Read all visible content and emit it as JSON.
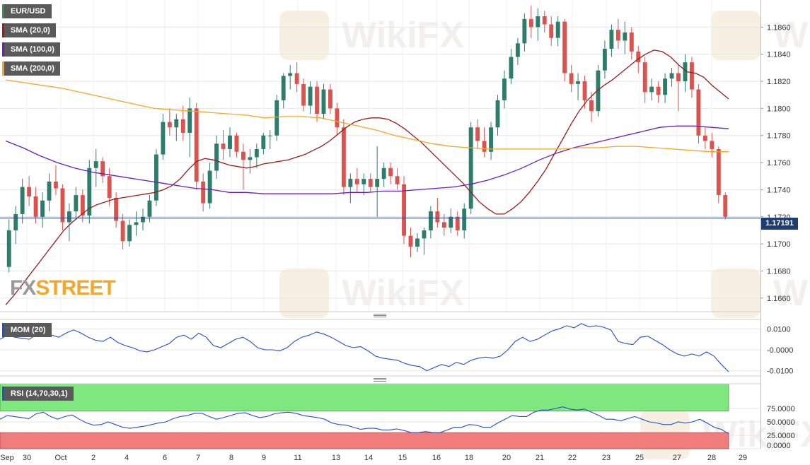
{
  "instrument": "EUR/USD",
  "current_price": "1.17191",
  "logo": {
    "part1": "FX",
    "part2": "STREET"
  },
  "watermark": "WikiFX",
  "legends": {
    "sma20": "SMA (20,0)",
    "sma100": "SMA (100,0)",
    "sma200": "SMA (200,0)",
    "mom": "MOM (20)",
    "rsi": "RSI (14,70,30,1)"
  },
  "colors": {
    "up": "#2e7d6b",
    "down": "#d9534f",
    "sma20": "#9b1c1c",
    "sma100": "#6a1fc0",
    "sma200": "#f5a623",
    "mom": "#2450c8",
    "rsi": "#2450c8",
    "rsi_overbought_band": "#7ee87e",
    "rsi_oversold_band": "#f07c7c",
    "price_line": "#1f3d73",
    "grid": "#e6e6e6"
  },
  "chart_data": [
    {
      "type": "candlestick",
      "panel": "price",
      "title": "EUR/USD",
      "ylim": [
        1.165,
        1.188
      ],
      "y_ticks": [
        "1.1860",
        "1.1840",
        "1.1820",
        "1.1800",
        "1.1780",
        "1.1760",
        "1.1740",
        "1.1720",
        "1.1700",
        "1.1680",
        "1.1660"
      ],
      "x_labels": [
        "Sep",
        "30",
        "Oct",
        "2",
        "4",
        "6",
        "7",
        "8",
        "9",
        "11",
        "13",
        "14",
        "15",
        "16",
        "18",
        "20",
        "21",
        "22",
        "23",
        "25",
        "27",
        "28",
        "29"
      ],
      "grid": true,
      "candles": [
        [
          1.1683,
          1.1718,
          1.1679,
          1.171
        ],
        [
          1.171,
          1.1728,
          1.17,
          1.1722
        ],
        [
          1.1722,
          1.1748,
          1.1715,
          1.1742
        ],
        [
          1.1742,
          1.175,
          1.1728,
          1.1735
        ],
        [
          1.1735,
          1.1742,
          1.1715,
          1.172
        ],
        [
          1.172,
          1.1738,
          1.1712,
          1.1732
        ],
        [
          1.1732,
          1.1752,
          1.1724,
          1.1746
        ],
        [
          1.1746,
          1.1758,
          1.1736,
          1.1741
        ],
        [
          1.1741,
          1.1744,
          1.171,
          1.1716
        ],
        [
          1.1716,
          1.173,
          1.1702,
          1.1724
        ],
        [
          1.1724,
          1.1742,
          1.1718,
          1.1736
        ],
        [
          1.1736,
          1.174,
          1.1716,
          1.1721
        ],
        [
          1.1721,
          1.1762,
          1.1715,
          1.1756
        ],
        [
          1.1756,
          1.177,
          1.1742,
          1.1761
        ],
        [
          1.1761,
          1.1764,
          1.1745,
          1.175
        ],
        [
          1.175,
          1.1756,
          1.1728,
          1.1734
        ],
        [
          1.1734,
          1.1738,
          1.1712,
          1.1717
        ],
        [
          1.1717,
          1.1722,
          1.1696,
          1.1702
        ],
        [
          1.1702,
          1.1718,
          1.1698,
          1.1714
        ],
        [
          1.1714,
          1.1724,
          1.1706,
          1.1716
        ],
        [
          1.1716,
          1.1726,
          1.171,
          1.172
        ],
        [
          1.172,
          1.1736,
          1.1716,
          1.1732
        ],
        [
          1.1732,
          1.177,
          1.1728,
          1.1766
        ],
        [
          1.1766,
          1.1796,
          1.1762,
          1.179
        ],
        [
          1.179,
          1.18,
          1.178,
          1.1786
        ],
        [
          1.1786,
          1.1796,
          1.1776,
          1.1792
        ],
        [
          1.1792,
          1.1802,
          1.1776,
          1.1782
        ],
        [
          1.1782,
          1.1808,
          1.1764,
          1.18
        ],
        [
          1.18,
          1.1804,
          1.174,
          1.1746
        ],
        [
          1.1746,
          1.1752,
          1.1724,
          1.173
        ],
        [
          1.173,
          1.176,
          1.1726,
          1.1754
        ],
        [
          1.1754,
          1.178,
          1.1748,
          1.1774
        ],
        [
          1.1774,
          1.1784,
          1.1762,
          1.177
        ],
        [
          1.177,
          1.1786,
          1.1764,
          1.178
        ],
        [
          1.178,
          1.1782,
          1.1764,
          1.1768
        ],
        [
          1.1768,
          1.1774,
          1.174,
          1.1762
        ],
        [
          1.1762,
          1.177,
          1.1752,
          1.1764
        ],
        [
          1.1764,
          1.1774,
          1.1756,
          1.177
        ],
        [
          1.177,
          1.1782,
          1.1766,
          1.178
        ],
        [
          1.178,
          1.1784,
          1.177,
          1.178
        ],
        [
          1.178,
          1.181,
          1.1776,
          1.1806
        ],
        [
          1.1806,
          1.1826,
          1.18,
          1.1824
        ],
        [
          1.1824,
          1.1832,
          1.1814,
          1.1826
        ],
        [
          1.1826,
          1.1834,
          1.1812,
          1.1818
        ],
        [
          1.1818,
          1.1822,
          1.1798,
          1.1802
        ],
        [
          1.1802,
          1.182,
          1.1796,
          1.1816
        ],
        [
          1.1816,
          1.182,
          1.179,
          1.1796
        ],
        [
          1.1796,
          1.1818,
          1.1792,
          1.1814
        ],
        [
          1.1814,
          1.1818,
          1.1796,
          1.18
        ],
        [
          1.18,
          1.1804,
          1.178,
          1.1786
        ],
        [
          1.1786,
          1.1792,
          1.1736,
          1.1742
        ],
        [
          1.1742,
          1.1752,
          1.173,
          1.1748
        ],
        [
          1.1748,
          1.1756,
          1.1738,
          1.1744
        ],
        [
          1.1744,
          1.1752,
          1.1736,
          1.1748
        ],
        [
          1.1748,
          1.1752,
          1.1738,
          1.1742
        ],
        [
          1.1742,
          1.1772,
          1.172,
          1.1748
        ],
        [
          1.1748,
          1.176,
          1.1742,
          1.1756
        ],
        [
          1.1756,
          1.176,
          1.1744,
          1.175
        ],
        [
          1.175,
          1.1756,
          1.174,
          1.1744
        ],
        [
          1.1744,
          1.175,
          1.17,
          1.1706
        ],
        [
          1.1706,
          1.1712,
          1.169,
          1.1698
        ],
        [
          1.1698,
          1.1708,
          1.1694,
          1.1704
        ],
        [
          1.1704,
          1.1712,
          1.1692,
          1.171
        ],
        [
          1.171,
          1.1728,
          1.1704,
          1.1724
        ],
        [
          1.1724,
          1.1734,
          1.1712,
          1.1716
        ],
        [
          1.1716,
          1.1722,
          1.1706,
          1.1712
        ],
        [
          1.1712,
          1.1726,
          1.1708,
          1.172
        ],
        [
          1.172,
          1.1724,
          1.1706,
          1.171
        ],
        [
          1.171,
          1.173,
          1.1704,
          1.1726
        ],
        [
          1.1726,
          1.179,
          1.1722,
          1.1786
        ],
        [
          1.1786,
          1.1792,
          1.177,
          1.1776
        ],
        [
          1.1776,
          1.1786,
          1.1764,
          1.1768
        ],
        [
          1.1768,
          1.179,
          1.1762,
          1.1786
        ],
        [
          1.1786,
          1.181,
          1.178,
          1.1806
        ],
        [
          1.1806,
          1.1828,
          1.18,
          1.1822
        ],
        [
          1.1822,
          1.1844,
          1.1818,
          1.1838
        ],
        [
          1.1838,
          1.1852,
          1.1832,
          1.1848
        ],
        [
          1.1848,
          1.187,
          1.1842,
          1.1866
        ],
        [
          1.1866,
          1.1876,
          1.1852,
          1.186
        ],
        [
          1.186,
          1.1874,
          1.185,
          1.1868
        ],
        [
          1.1868,
          1.1872,
          1.1856,
          1.1862
        ],
        [
          1.1862,
          1.1868,
          1.1846,
          1.1852
        ],
        [
          1.1852,
          1.1868,
          1.1846,
          1.1864
        ],
        [
          1.1864,
          1.1866,
          1.182,
          1.1826
        ],
        [
          1.1826,
          1.1832,
          1.1812,
          1.1818
        ],
        [
          1.1818,
          1.1826,
          1.1806,
          1.182
        ],
        [
          1.182,
          1.1824,
          1.18,
          1.1806
        ],
        [
          1.1806,
          1.1812,
          1.179,
          1.1798
        ],
        [
          1.1798,
          1.1832,
          1.1794,
          1.1828
        ],
        [
          1.1828,
          1.185,
          1.1822,
          1.1844
        ],
        [
          1.1844,
          1.1862,
          1.1838,
          1.1858
        ],
        [
          1.1858,
          1.1866,
          1.1844,
          1.185
        ],
        [
          1.185,
          1.1864,
          1.184,
          1.1856
        ],
        [
          1.1856,
          1.186,
          1.1836,
          1.1842
        ],
        [
          1.1842,
          1.1846,
          1.1826,
          1.1834
        ],
        [
          1.1834,
          1.1838,
          1.1804,
          1.1812
        ],
        [
          1.1812,
          1.1822,
          1.1806,
          1.1816
        ],
        [
          1.1816,
          1.182,
          1.1804,
          1.181
        ],
        [
          1.181,
          1.1826,
          1.1804,
          1.1822
        ],
        [
          1.1822,
          1.183,
          1.1816,
          1.1826
        ],
        [
          1.1826,
          1.1832,
          1.1798,
          1.182
        ],
        [
          1.182,
          1.184,
          1.1812,
          1.1834
        ],
        [
          1.1834,
          1.1838,
          1.1808,
          1.1814
        ],
        [
          1.1814,
          1.1818,
          1.1774,
          1.178
        ],
        [
          1.178,
          1.1786,
          1.177,
          1.1776
        ],
        [
          1.1776,
          1.1782,
          1.1764,
          1.177
        ],
        [
          1.177,
          1.1772,
          1.173,
          1.1736
        ],
        [
          1.1736,
          1.1738,
          1.1718,
          1.172
        ]
      ],
      "series": [
        {
          "name": "SMA (20,0)",
          "values": [
            1.1655,
            1.1662,
            1.167,
            1.1678,
            1.1686,
            1.1694,
            1.1702,
            1.171,
            1.1716,
            1.1721,
            1.1726,
            1.1729,
            1.1731,
            1.1733,
            1.1734,
            1.1735,
            1.1736,
            1.1737,
            1.1738,
            1.174,
            1.1743,
            1.1748,
            1.1755,
            1.1761,
            1.1763,
            1.1762,
            1.176,
            1.1758,
            1.1757,
            1.1756,
            1.1757,
            1.1759,
            1.176,
            1.1761,
            1.1762,
            1.1764,
            1.1766,
            1.1769,
            1.1772,
            1.1776,
            1.1781,
            1.1786,
            1.179,
            1.1792,
            1.1793,
            1.1793,
            1.1792,
            1.1789,
            1.1785,
            1.178,
            1.1775,
            1.1769,
            1.1763,
            1.1757,
            1.1751,
            1.1745,
            1.1738,
            1.1731,
            1.1726,
            1.1722,
            1.1722,
            1.1726,
            1.1731,
            1.1738,
            1.1746,
            1.1755,
            1.1766,
            1.1777,
            1.1788,
            1.1798,
            1.1806,
            1.1812,
            1.1817,
            1.1821,
            1.1826,
            1.1831,
            1.1836,
            1.184,
            1.1843,
            1.1842,
            1.1838,
            1.1832,
            1.1827,
            1.1826,
            1.1823,
            1.1817,
            1.1812,
            1.1807
          ]
        },
        {
          "name": "SMA (100,0)",
          "values": [
            1.1776,
            1.1771,
            1.1765,
            1.176,
            1.1756,
            1.1753,
            1.1751,
            1.1749,
            1.1747,
            1.1745,
            1.1743,
            1.1741,
            1.174,
            1.1738,
            1.1738,
            1.1737,
            1.1737,
            1.1737,
            1.1737,
            1.1737,
            1.1738,
            1.1738,
            1.1739,
            1.1739,
            1.174,
            1.1741,
            1.1742,
            1.1744,
            1.1747,
            1.1751,
            1.1756,
            1.1762,
            1.1767,
            1.1771,
            1.1774,
            1.1777,
            1.178,
            1.1783,
            1.1786,
            1.1787,
            1.1787,
            1.1786,
            1.1785
          ]
        },
        {
          "name": "SMA (200,0)",
          "values": [
            1.1821,
            1.1819,
            1.1817,
            1.1815,
            1.1812,
            1.1809,
            1.1806,
            1.1803,
            1.18,
            1.1799,
            1.1798,
            1.1797,
            1.1796,
            1.1795,
            1.1793,
            1.1794,
            1.1794,
            1.1793,
            1.179,
            1.1787,
            1.1784,
            1.178,
            1.1777,
            1.1774,
            1.1772,
            1.1771,
            1.177,
            1.177,
            1.177,
            1.177,
            1.177,
            1.1771,
            1.1771,
            1.1772,
            1.1772,
            1.1771,
            1.177,
            1.1769,
            1.1768,
            1.1768
          ]
        }
      ],
      "last_price": 1.17191
    },
    {
      "type": "line",
      "panel": "momentum",
      "title": "MOM (20)",
      "ylim": [
        -0.0125,
        0.0145
      ],
      "y_ticks": [
        "0.0100",
        "-0.0000",
        "-0.0100"
      ],
      "series": [
        {
          "name": "MOM (20)",
          "values": [
            0.005,
            0.007,
            0.006,
            0.0055,
            0.005,
            0.0075,
            0.009,
            0.007,
            0.006,
            0.008,
            0.0095,
            0.008,
            0.006,
            0.0045,
            0.004,
            0.006,
            0.0035,
            0.002,
            0.001,
            -0.0005,
            -0.001,
            0.0,
            0.0015,
            0.003,
            0.006,
            0.007,
            0.005,
            0.008,
            0.006,
            0.002,
            0.001,
            0.003,
            0.005,
            0.006,
            0.004,
            0.001,
            0.0,
            0.0,
            -0.0005,
            0.001,
            0.004,
            0.006,
            0.007,
            0.0085,
            0.0075,
            0.006,
            0.004,
            0.002,
            0.001,
            0.0015,
            -0.0005,
            -0.003,
            -0.004,
            -0.0045,
            -0.005,
            -0.0065,
            -0.0075,
            -0.008,
            -0.01,
            -0.0085,
            -0.007,
            -0.008,
            -0.006,
            -0.007,
            -0.005,
            -0.004,
            -0.0035,
            -0.004,
            -0.003,
            0.0,
            0.004,
            0.006,
            0.004,
            0.005,
            0.007,
            0.009,
            0.01,
            0.0115,
            0.0105,
            0.0125,
            0.011,
            0.0115,
            0.0108,
            0.0095,
            0.004,
            0.003,
            0.0025,
            0.006,
            0.0065,
            0.0045,
            0.0025,
            0.0,
            -0.002,
            -0.003,
            -0.002,
            -0.003,
            -0.001,
            -0.003,
            -0.007,
            -0.0105
          ]
        }
      ]
    },
    {
      "type": "line",
      "panel": "rsi",
      "title": "RSI (14,70,30,1)",
      "ylim": [
        0,
        100
      ],
      "y_ticks": [
        "75.0000",
        "50.0000",
        "25.0000",
        "0.0000"
      ],
      "bands": {
        "overbought": 70,
        "oversold": 30
      },
      "series": [
        {
          "name": "RSI (14,70,30,1)",
          "values": [
            55,
            62,
            60,
            58,
            56,
            65,
            68,
            60,
            55,
            60,
            63,
            55,
            48,
            44,
            45,
            50,
            45,
            40,
            38,
            40,
            42,
            45,
            48,
            50,
            56,
            60,
            62,
            66,
            66,
            60,
            55,
            58,
            62,
            66,
            67,
            62,
            58,
            60,
            65,
            67,
            68,
            66,
            62,
            60,
            58,
            55,
            48,
            45,
            44,
            40,
            36,
            38,
            38,
            35,
            35,
            37,
            34,
            30,
            30,
            32,
            30,
            30,
            35,
            40,
            40,
            45,
            44,
            40,
            40,
            48,
            55,
            62,
            60,
            60,
            68,
            72,
            72,
            75,
            78,
            74,
            72,
            74,
            68,
            62,
            55,
            55,
            52,
            56,
            60,
            55,
            50,
            48,
            45,
            45,
            50,
            48,
            50,
            55,
            48,
            40,
            36,
            28
          ]
        }
      ]
    }
  ]
}
